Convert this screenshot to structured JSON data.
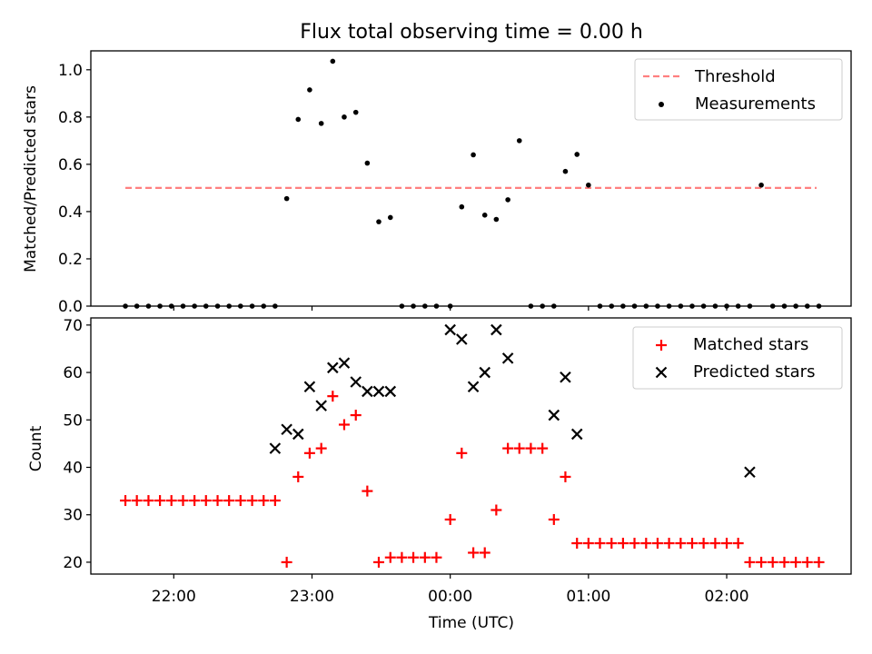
{
  "colors": {
    "threshold": "#ff7f7f",
    "measurement": "#000000",
    "matched": "#ff0000",
    "predicted": "#000000"
  },
  "chart_data": [
    {
      "type": "scatter",
      "title": "Flux total observing time = 0.00 h",
      "xlabel": "",
      "ylabel": "Matched/Predicted stars",
      "x_unit": "hours since 00:00 UTC",
      "xlim": [
        -2.6,
        2.9
      ],
      "ylim": [
        0,
        1.08
      ],
      "yticks": [
        "0.0",
        "0.2",
        "0.4",
        "0.6",
        "0.8",
        "1.0"
      ],
      "legend_position": "top-right",
      "legend": [
        "Threshold",
        "Measurements"
      ],
      "threshold": {
        "name": "Threshold",
        "value": 0.5,
        "x_range": [
          -2.35,
          2.65
        ]
      },
      "series": [
        {
          "name": "Measurements",
          "x": [
            -2.35,
            -2.267,
            -2.183,
            -2.1,
            -2.017,
            -1.933,
            -1.85,
            -1.767,
            -1.683,
            -1.6,
            -1.517,
            -1.433,
            -1.35,
            -1.267,
            -1.183,
            -1.1,
            -1.017,
            -0.933,
            -0.85,
            -0.767,
            -0.683,
            -0.6,
            -0.517,
            -0.433,
            -0.35,
            -0.267,
            -0.183,
            -0.1,
            0.0,
            0.083,
            0.167,
            0.25,
            0.333,
            0.417,
            0.5,
            0.583,
            0.667,
            0.75,
            0.833,
            0.917,
            1.0,
            1.083,
            1.167,
            1.25,
            1.333,
            1.417,
            1.5,
            1.583,
            1.667,
            1.75,
            1.833,
            1.917,
            2.0,
            2.083,
            2.167,
            2.25,
            2.333,
            2.417,
            2.5,
            2.583,
            2.667
          ],
          "y": [
            0,
            0,
            0,
            0,
            0,
            0,
            0,
            0,
            0,
            0,
            0,
            0,
            0,
            0,
            0.455,
            0.79,
            0.915,
            0.773,
            1.036,
            0.8,
            0.82,
            0.605,
            0.357,
            0.375,
            0,
            0,
            0,
            0,
            0,
            0.42,
            0.64,
            0.385,
            0.367,
            0.45,
            0.7,
            0,
            0,
            0,
            0.57,
            0.642,
            0.512,
            0,
            0,
            0,
            0,
            0,
            0,
            0,
            0,
            0,
            0,
            0,
            0,
            0,
            0,
            0.512,
            0,
            0,
            0,
            0,
            0
          ]
        }
      ]
    },
    {
      "type": "scatter",
      "title": "",
      "xlabel": "Time (UTC)",
      "ylabel": "Count",
      "x_unit": "hours since 00:00 UTC",
      "xlim": [
        -2.6,
        2.9
      ],
      "ylim": [
        17.5,
        71.5
      ],
      "yticks": [
        "20",
        "30",
        "40",
        "50",
        "60",
        "70"
      ],
      "xticks": [
        {
          "x": -2.0,
          "label": "22:00"
        },
        {
          "x": -1.0,
          "label": "23:00"
        },
        {
          "x": 0.0,
          "label": "00:00"
        },
        {
          "x": 1.0,
          "label": "01:00"
        },
        {
          "x": 2.0,
          "label": "02:00"
        }
      ],
      "legend_position": "top-right",
      "legend": [
        "Matched stars",
        "Predicted stars"
      ],
      "series": [
        {
          "name": "Matched stars",
          "x": [
            -2.35,
            -2.267,
            -2.183,
            -2.1,
            -2.017,
            -1.933,
            -1.85,
            -1.767,
            -1.683,
            -1.6,
            -1.517,
            -1.433,
            -1.35,
            -1.267,
            -1.183,
            -1.1,
            -1.017,
            -0.933,
            -0.85,
            -0.767,
            -0.683,
            -0.6,
            -0.517,
            -0.433,
            -0.35,
            -0.267,
            -0.183,
            -0.1,
            0.0,
            0.083,
            0.167,
            0.25,
            0.333,
            0.417,
            0.5,
            0.583,
            0.667,
            0.75,
            0.833,
            0.917,
            1.0,
            1.083,
            1.167,
            1.25,
            1.333,
            1.417,
            1.5,
            1.583,
            1.667,
            1.75,
            1.833,
            1.917,
            2.0,
            2.083,
            2.167,
            2.25,
            2.333,
            2.417,
            2.5,
            2.583,
            2.667
          ],
          "y": [
            33,
            33,
            33,
            33,
            33,
            33,
            33,
            33,
            33,
            33,
            33,
            33,
            33,
            33,
            20,
            38,
            43,
            44,
            55,
            49,
            51,
            35,
            20,
            21,
            21,
            21,
            21,
            21,
            29,
            43,
            22,
            22,
            31,
            44,
            44,
            44,
            44,
            29,
            38,
            24,
            24,
            24,
            24,
            24,
            24,
            24,
            24,
            24,
            24,
            24,
            24,
            24,
            24,
            24,
            20,
            20,
            20,
            20,
            20,
            20,
            20
          ]
        },
        {
          "name": "Predicted stars",
          "x": [
            -1.267,
            -1.183,
            -1.1,
            -1.017,
            -0.933,
            -0.85,
            -0.767,
            -0.683,
            -0.6,
            -0.517,
            -0.433,
            0.0,
            0.083,
            0.167,
            0.25,
            0.333,
            0.417,
            0.75,
            0.833,
            0.917,
            2.167
          ],
          "y": [
            44,
            48,
            47,
            57,
            53,
            61,
            62,
            58,
            56,
            56,
            56,
            69,
            67,
            57,
            60,
            69,
            63,
            51,
            59,
            47,
            39
          ]
        }
      ]
    }
  ]
}
